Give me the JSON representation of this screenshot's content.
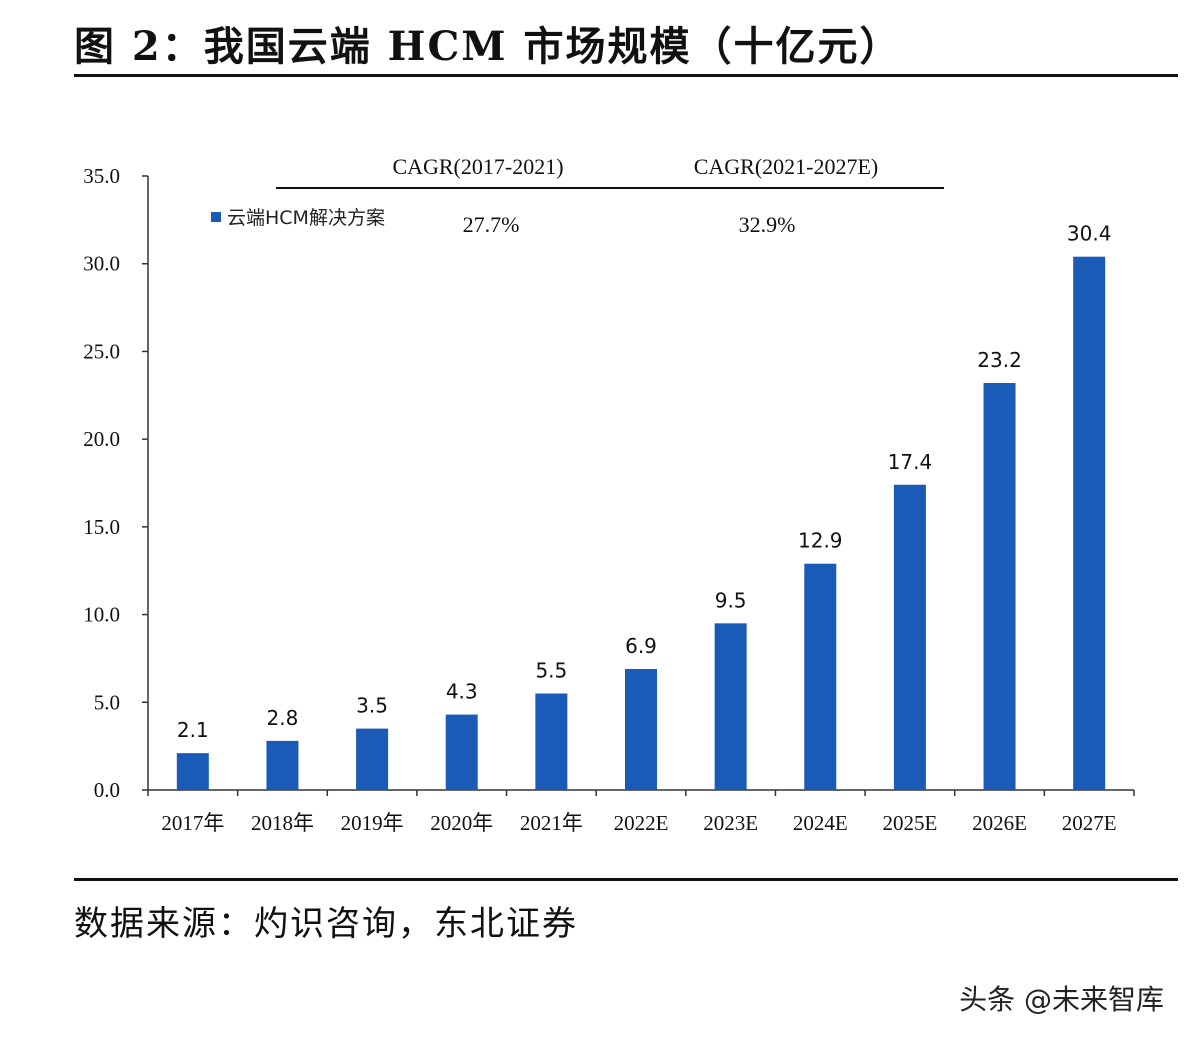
{
  "figure": {
    "title": "图 2：我国云端 HCM 市场规模（十亿元）",
    "source": "数据来源：灼识咨询，东北证券",
    "watermark": "头条 @未来智库"
  },
  "chart_data": {
    "type": "bar",
    "categories": [
      "2017年",
      "2018年",
      "2019年",
      "2020年",
      "2021年",
      "2022E",
      "2023E",
      "2024E",
      "2025E",
      "2026E",
      "2027E"
    ],
    "series": [
      {
        "name": "云端HCM解决方案",
        "values": [
          2.1,
          2.8,
          3.5,
          4.3,
          5.5,
          6.9,
          9.5,
          12.9,
          17.4,
          23.2,
          30.4
        ],
        "color": "#1a5bb8"
      }
    ],
    "data_labels": [
      "2.1",
      "2.8",
      "3.5",
      "4.3",
      "5.5",
      "6.9",
      "9.5",
      "12.9",
      "17.4",
      "23.2",
      "30.4"
    ],
    "ylim": [
      0,
      35
    ],
    "yticks": [
      "0.0",
      "5.0",
      "10.0",
      "15.0",
      "20.0",
      "25.0",
      "30.0",
      "35.0"
    ],
    "legend_position": "top-left",
    "grid": false,
    "annotations": [
      {
        "label": "CAGR(2017-2021)",
        "value": "27.7%"
      },
      {
        "label": "CAGR(2021-2027E)",
        "value": "32.9%"
      }
    ]
  }
}
